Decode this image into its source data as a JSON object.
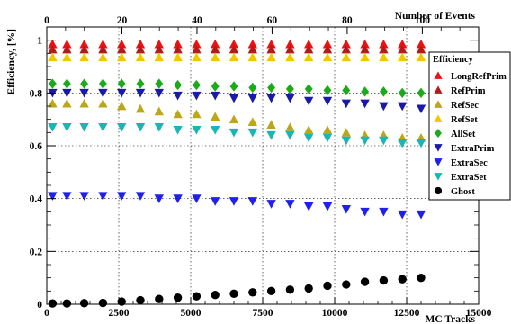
{
  "chart_data": {
    "type": "scatter",
    "top_axis_title": "Number of Events",
    "xlabel": "MC Tracks",
    "ylabel": "Efficiency, [%]",
    "xlim": [
      0,
      15000
    ],
    "xlim_top": [
      0,
      115
    ],
    "ylim": [
      0,
      1.05
    ],
    "x_ticks": [
      "0",
      "2500",
      "5000",
      "7500",
      "10000",
      "12500",
      "15000"
    ],
    "top_ticks": [
      "0",
      "20",
      "40",
      "60",
      "80",
      "100"
    ],
    "y_ticks": [
      "0",
      "0.2",
      "0.4",
      "0.6",
      "0.8",
      "1"
    ],
    "grid": true,
    "legend_title": "Efficiency",
    "legend_position": "right",
    "x": [
      200,
      700,
      1300,
      1950,
      2600,
      3250,
      3900,
      4550,
      5200,
      5850,
      6500,
      7150,
      7800,
      8450,
      9100,
      9750,
      10400,
      11050,
      11700,
      12350,
      13000
    ],
    "series": [
      {
        "name": "LongRefPrim",
        "marker": "triangle-up",
        "color": "#ee1111",
        "values": [
          0.985,
          0.985,
          0.985,
          0.985,
          0.985,
          0.985,
          0.985,
          0.985,
          0.985,
          0.985,
          0.985,
          0.985,
          0.985,
          0.985,
          0.985,
          0.985,
          0.985,
          0.985,
          0.985,
          0.985,
          0.985
        ]
      },
      {
        "name": "RefPrim",
        "marker": "triangle-up",
        "color": "#b31b1b",
        "values": [
          0.965,
          0.965,
          0.965,
          0.965,
          0.965,
          0.965,
          0.965,
          0.965,
          0.965,
          0.965,
          0.965,
          0.965,
          0.965,
          0.965,
          0.965,
          0.965,
          0.965,
          0.965,
          0.965,
          0.965,
          0.965
        ]
      },
      {
        "name": "RefSec",
        "marker": "triangle-up",
        "color": "#bba81a",
        "values": [
          0.76,
          0.76,
          0.76,
          0.76,
          0.75,
          0.74,
          0.73,
          0.72,
          0.72,
          0.71,
          0.7,
          0.69,
          0.68,
          0.67,
          0.66,
          0.66,
          0.65,
          0.64,
          0.64,
          0.63,
          0.63
        ]
      },
      {
        "name": "RefSet",
        "marker": "triangle-up",
        "color": "#f5c400",
        "values": [
          0.935,
          0.935,
          0.935,
          0.935,
          0.935,
          0.935,
          0.935,
          0.935,
          0.935,
          0.935,
          0.935,
          0.935,
          0.935,
          0.935,
          0.935,
          0.935,
          0.935,
          0.935,
          0.935,
          0.935,
          0.935
        ]
      },
      {
        "name": "AllSet",
        "marker": "diamond",
        "color": "#1aaa1a",
        "values": [
          0.835,
          0.835,
          0.835,
          0.835,
          0.835,
          0.835,
          0.835,
          0.83,
          0.83,
          0.825,
          0.825,
          0.82,
          0.82,
          0.815,
          0.815,
          0.81,
          0.81,
          0.805,
          0.805,
          0.8,
          0.8
        ]
      },
      {
        "name": "ExtraPrim",
        "marker": "triangle-down",
        "color": "#1a1aaa",
        "values": [
          0.8,
          0.8,
          0.8,
          0.8,
          0.8,
          0.8,
          0.8,
          0.79,
          0.79,
          0.79,
          0.78,
          0.78,
          0.78,
          0.78,
          0.77,
          0.77,
          0.76,
          0.76,
          0.75,
          0.75,
          0.74
        ]
      },
      {
        "name": "ExtraSec",
        "marker": "triangle-down",
        "color": "#1f1fee",
        "values": [
          0.41,
          0.41,
          0.41,
          0.41,
          0.41,
          0.41,
          0.4,
          0.4,
          0.4,
          0.39,
          0.39,
          0.39,
          0.38,
          0.38,
          0.37,
          0.37,
          0.36,
          0.35,
          0.35,
          0.34,
          0.34
        ]
      },
      {
        "name": "ExtraSet",
        "marker": "triangle-down",
        "color": "#1ab5b5",
        "values": [
          0.67,
          0.67,
          0.67,
          0.67,
          0.67,
          0.67,
          0.67,
          0.66,
          0.66,
          0.66,
          0.65,
          0.65,
          0.64,
          0.64,
          0.63,
          0.63,
          0.62,
          0.62,
          0.62,
          0.61,
          0.61
        ]
      },
      {
        "name": "Ghost",
        "marker": "circle",
        "color": "#000000",
        "values": [
          0.003,
          0.003,
          0.004,
          0.005,
          0.01,
          0.015,
          0.02,
          0.025,
          0.03,
          0.035,
          0.04,
          0.045,
          0.05,
          0.055,
          0.06,
          0.07,
          0.075,
          0.085,
          0.09,
          0.095,
          0.1
        ]
      }
    ]
  }
}
